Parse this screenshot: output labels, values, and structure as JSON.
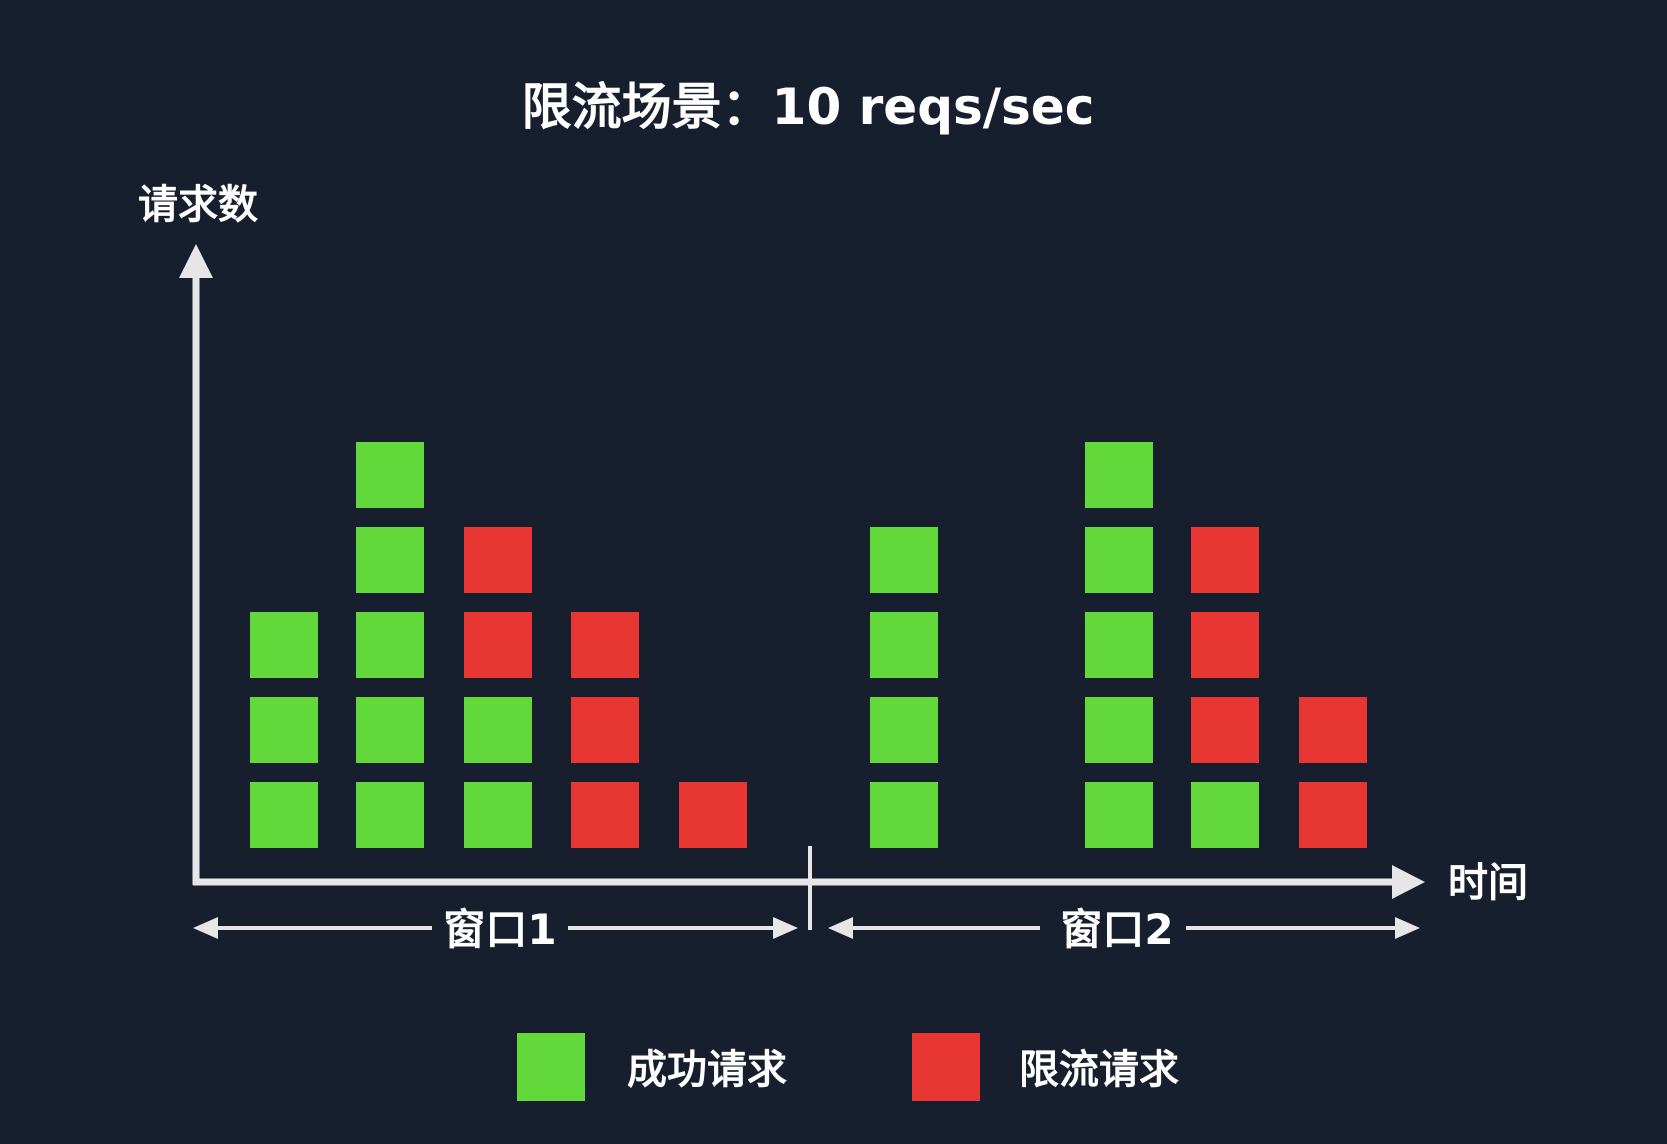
{
  "title": "限流场景：10 reqs/sec",
  "y_axis_label": "请求数",
  "x_axis_label": "时间",
  "windows": [
    {
      "label": "窗口1"
    },
    {
      "label": "窗口2"
    }
  ],
  "legend": [
    {
      "label": "成功请求",
      "color": "#63d83b"
    },
    {
      "label": "限流请求",
      "color": "#e83633"
    }
  ],
  "colors": {
    "background": "#171f2e",
    "axis": "#e6e6e6",
    "success": "#63d83b",
    "limited": "#e83633"
  },
  "columns": [
    {
      "window": 1,
      "stack": [
        "success",
        "success",
        "success"
      ]
    },
    {
      "window": 1,
      "stack": [
        "success",
        "success",
        "success",
        "success",
        "success"
      ]
    },
    {
      "window": 1,
      "stack": [
        "success",
        "success",
        "limited",
        "limited"
      ]
    },
    {
      "window": 1,
      "stack": [
        "limited",
        "limited",
        "limited"
      ]
    },
    {
      "window": 1,
      "stack": [
        "limited"
      ]
    },
    {
      "window": 2,
      "stack": [
        "success",
        "success",
        "success",
        "success"
      ]
    },
    {
      "window": 2,
      "stack": [
        "success",
        "success",
        "success",
        "success",
        "success"
      ]
    },
    {
      "window": 2,
      "stack": [
        "success",
        "limited",
        "limited",
        "limited"
      ]
    },
    {
      "window": 2,
      "stack": [
        "limited",
        "limited"
      ]
    }
  ]
}
